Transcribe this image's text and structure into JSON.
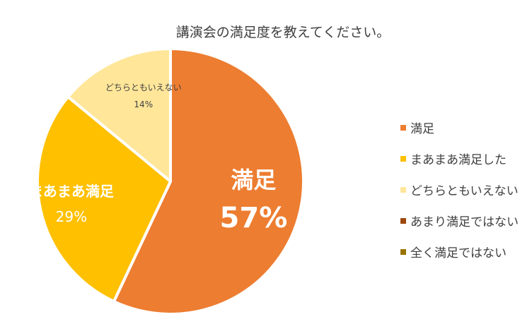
{
  "chart_data": {
    "type": "pie",
    "title": "講演会の満足度を教えてください。",
    "legend_position": "right",
    "slices": [
      {
        "name": "満足",
        "value": 57,
        "label": "57%",
        "color": "#ED7D31",
        "data_label_name": "満足"
      },
      {
        "name": "まあまあ満足した",
        "value": 29,
        "label": "29%",
        "color": "#FFC000",
        "data_label_name": "まあまあ満足"
      },
      {
        "name": "どちらともいえない",
        "value": 14,
        "label": "14%",
        "color": "#FFE699",
        "data_label_name": "どちらともいえない"
      },
      {
        "name": "あまり満足ではない",
        "value": 0,
        "label": "",
        "color": "#9E480E",
        "data_label_name": ""
      },
      {
        "name": "全く満足ではない",
        "value": 0,
        "label": "",
        "color": "#997300",
        "data_label_name": ""
      }
    ]
  }
}
